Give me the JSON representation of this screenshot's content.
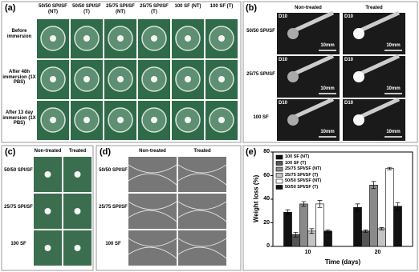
{
  "panel_a": {
    "label": "(a)",
    "columns": [
      "50/50 SPI/SF (NT)",
      "50/50 SPI/SF (T)",
      "25/75 SPI/SF (NT)",
      "25/75 SPI/SF (T)",
      "100 SF (NT)",
      "100 SF (T)"
    ],
    "rows": [
      "Before immersion",
      "After 48h immersion (1X PBS)",
      "After 13 day immersion (1X PBS)"
    ]
  },
  "panel_b": {
    "label": "(b)",
    "columns": [
      "Non-treated",
      "Treated"
    ],
    "rows": [
      "50/50 SPI/SF",
      "25/75 SPI/SF",
      "100 SF"
    ],
    "magnification": "D10",
    "scale_label": "10mm"
  },
  "panel_c": {
    "label": "(c)",
    "columns": [
      "Non-treated",
      "Treated"
    ],
    "rows": [
      "50/50 SPI/SF",
      "25/75 SPI/SF",
      "100 SF"
    ]
  },
  "panel_d": {
    "label": "(d)",
    "columns": [
      "Non-treated",
      "Treated"
    ],
    "rows": [
      "50/50 SPI/SF",
      "25/75 SPI/SF",
      "100 SF"
    ]
  },
  "chart_data": {
    "type": "bar",
    "label": "(e)",
    "x_label": "Time (days)",
    "y_label": "Weight loss (%)",
    "categories": [
      "10",
      "20"
    ],
    "ylim": [
      0,
      80
    ],
    "yticks": [
      0,
      20,
      40,
      60,
      80
    ],
    "legend": "top-left",
    "series": [
      {
        "name": "100 SF (NT)",
        "color": "#111111",
        "values": [
          29,
          33
        ],
        "errors": [
          2,
          3
        ]
      },
      {
        "name": "100 SF (T)",
        "color": "#555555",
        "values": [
          10,
          13
        ],
        "errors": [
          2,
          1
        ]
      },
      {
        "name": "25/75 SPI/SF (NT)",
        "color": "#8a8a8a",
        "values": [
          36,
          52
        ],
        "errors": [
          2,
          3
        ]
      },
      {
        "name": "25/75 SPI/SF (T)",
        "color": "#c4c4c4",
        "values": [
          13,
          15
        ],
        "errors": [
          2,
          1
        ]
      },
      {
        "name": "50/50 SPI/SF (NT)",
        "color": "#ffffff",
        "values": [
          36,
          66
        ],
        "errors": [
          3,
          1
        ]
      },
      {
        "name": "50/50 SPI/SF (T)",
        "color": "#111111",
        "values": [
          13,
          34
        ],
        "errors": [
          1,
          3
        ]
      }
    ]
  }
}
